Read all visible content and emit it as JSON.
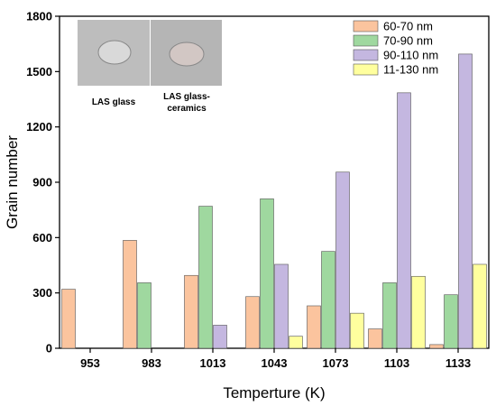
{
  "chart_data": {
    "type": "bar",
    "title": "",
    "xlabel": "Temperture (K)",
    "ylabel": "Grain number",
    "ylim": [
      0,
      1800
    ],
    "yticks": [
      0,
      300,
      600,
      900,
      1200,
      1500,
      1800
    ],
    "categories": [
      "953",
      "983",
      "1013",
      "1043",
      "1073",
      "1103",
      "1133"
    ],
    "grid": false,
    "legend_position": "top-right",
    "series": [
      {
        "name": "60-70 nm",
        "color": "#FBC49E",
        "values": [
          320,
          585,
          395,
          280,
          230,
          105,
          20
        ]
      },
      {
        "name": "70-90 nm",
        "color": "#9FD89F",
        "values": [
          0,
          355,
          770,
          810,
          525,
          355,
          290
        ]
      },
      {
        "name": "90-110 nm",
        "color": "#C4B7E0",
        "values": [
          0,
          0,
          125,
          455,
          955,
          1385,
          1595
        ]
      },
      {
        "name": "11-130 nm",
        "color": "#FFFF9E",
        "values": [
          0,
          0,
          0,
          65,
          190,
          390,
          455
        ]
      }
    ],
    "inset": {
      "labels": [
        "LAS glass",
        "LAS glass-\nceramics"
      ]
    }
  }
}
